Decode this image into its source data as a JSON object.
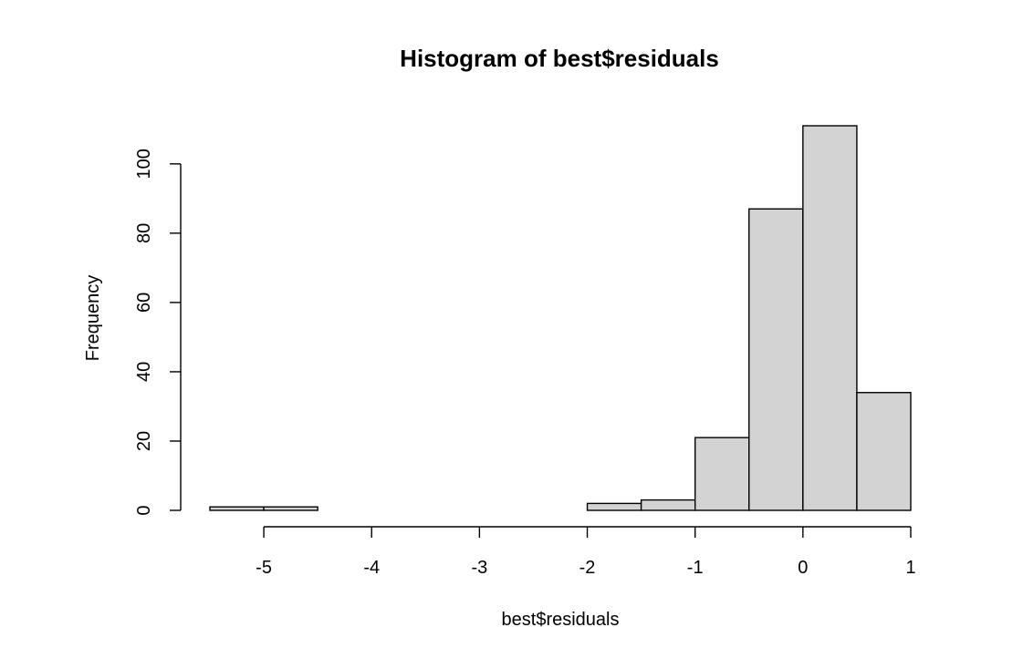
{
  "chart_data": {
    "type": "bar",
    "title": "Histogram of best$residuals",
    "xlabel": "best$residuals",
    "ylabel": "Frequency",
    "bins": [
      {
        "x0": -5.5,
        "x1": -5.0,
        "count": 1
      },
      {
        "x0": -5.0,
        "x1": -4.5,
        "count": 1
      },
      {
        "x0": -4.5,
        "x1": -4.0,
        "count": 0
      },
      {
        "x0": -4.0,
        "x1": -3.5,
        "count": 0
      },
      {
        "x0": -3.5,
        "x1": -3.0,
        "count": 0
      },
      {
        "x0": -3.0,
        "x1": -2.5,
        "count": 0
      },
      {
        "x0": -2.5,
        "x1": -2.0,
        "count": 0
      },
      {
        "x0": -2.0,
        "x1": -1.5,
        "count": 2
      },
      {
        "x0": -1.5,
        "x1": -1.0,
        "count": 3
      },
      {
        "x0": -1.0,
        "x1": -0.5,
        "count": 21
      },
      {
        "x0": -0.5,
        "x1": 0.0,
        "count": 87
      },
      {
        "x0": 0.0,
        "x1": 0.5,
        "count": 111
      },
      {
        "x0": 0.5,
        "x1": 1.0,
        "count": 34
      }
    ],
    "xticks": [
      -5,
      -4,
      -3,
      -2,
      -1,
      0,
      1
    ],
    "yticks": [
      0,
      20,
      40,
      60,
      80,
      100
    ],
    "xlim": [
      -5.5,
      1.0
    ],
    "ylim": [
      0,
      111
    ],
    "bar_color": "#d3d3d3",
    "grid": false,
    "legend": "none"
  }
}
